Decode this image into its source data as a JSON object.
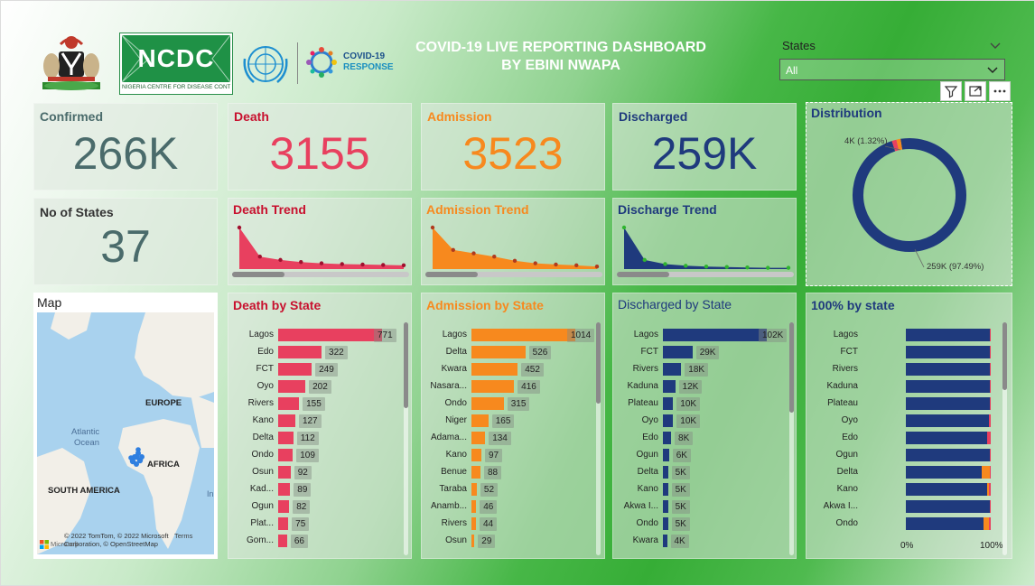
{
  "header": {
    "line1": "COVID-19 LIVE REPORTING DASHBOARD",
    "line2": "BY EBINI NWAPA"
  },
  "logos": {
    "ncdc_name": "NCDC",
    "ncdc_caption": "NIGERIA CENTRE FOR DISEASE CONTROL",
    "covid_line1": "COVID-19",
    "covid_line2": "RESPONSE"
  },
  "slicer": {
    "label": "States",
    "value": "All"
  },
  "kpis": {
    "confirmed": {
      "label": "Confirmed",
      "value": "266K"
    },
    "death": {
      "label": "Death",
      "value": "3155"
    },
    "admission": {
      "label": "Admission",
      "value": "3523"
    },
    "discharged": {
      "label": "Discharged",
      "value": "259K"
    },
    "states": {
      "label": "No of States",
      "value": "37"
    }
  },
  "trends": {
    "death": {
      "title": "Death Trend",
      "values": [
        100,
        30,
        22,
        17,
        14,
        12,
        11,
        10,
        9
      ]
    },
    "admission": {
      "title": "Admission Trend",
      "values": [
        100,
        46,
        38,
        30,
        20,
        14,
        11,
        9,
        6
      ]
    },
    "discharge": {
      "title": "Discharge Trend",
      "values": [
        100,
        22,
        12,
        8,
        6,
        5,
        4,
        3,
        3
      ]
    }
  },
  "distribution": {
    "title": "Distribution",
    "label_small": "4K (1.32%)",
    "label_big": "259K (97.49%)",
    "slices": [
      97.49,
      1.32,
      1.19
    ]
  },
  "map": {
    "title": "Map",
    "europe": "EUROPE",
    "africa": "AFRICA",
    "south_america": "SOUTH AMERICA",
    "atlantic": "Atlantic",
    "ocean": "Ocean",
    "attribution": "© 2022 TomTom, © 2022 Microsoft Corporation, © OpenStreetMap",
    "terms": "Terms",
    "brand": "Microsoft",
    "edge_text": "In"
  },
  "death_by_state": {
    "title": "Death by State",
    "max": 771,
    "rows": [
      {
        "label": "Lagos",
        "value": 771
      },
      {
        "label": "Edo",
        "value": 322
      },
      {
        "label": "FCT",
        "value": 249
      },
      {
        "label": "Oyo",
        "value": 202
      },
      {
        "label": "Rivers",
        "value": 155
      },
      {
        "label": "Kano",
        "value": 127
      },
      {
        "label": "Delta",
        "value": 112
      },
      {
        "label": "Ondo",
        "value": 109
      },
      {
        "label": "Osun",
        "value": 92
      },
      {
        "label": "Kad...",
        "value": 89
      },
      {
        "label": "Ogun",
        "value": 82
      },
      {
        "label": "Plat...",
        "value": 75
      },
      {
        "label": "Gom...",
        "value": 66
      }
    ]
  },
  "admission_by_state": {
    "title": "Admission by State",
    "max": 1014,
    "rows": [
      {
        "label": "Lagos",
        "value": 1014
      },
      {
        "label": "Delta",
        "value": 526
      },
      {
        "label": "Kwara",
        "value": 452
      },
      {
        "label": "Nasara...",
        "value": 416
      },
      {
        "label": "Ondo",
        "value": 315
      },
      {
        "label": "Niger",
        "value": 165
      },
      {
        "label": "Adama...",
        "value": 134
      },
      {
        "label": "Kano",
        "value": 97
      },
      {
        "label": "Benue",
        "value": 88
      },
      {
        "label": "Taraba",
        "value": 52
      },
      {
        "label": "Anamb...",
        "value": 46
      },
      {
        "label": "Rivers",
        "value": 44
      },
      {
        "label": "Osun",
        "value": 29
      }
    ]
  },
  "discharged_by_state": {
    "title": "Discharged by State",
    "max": 102,
    "rows": [
      {
        "label": "Lagos",
        "value": 102,
        "text": "102K"
      },
      {
        "label": "FCT",
        "value": 29,
        "text": "29K"
      },
      {
        "label": "Rivers",
        "value": 18,
        "text": "18K"
      },
      {
        "label": "Kaduna",
        "value": 12,
        "text": "12K"
      },
      {
        "label": "Plateau",
        "value": 10,
        "text": "10K"
      },
      {
        "label": "Oyo",
        "value": 10,
        "text": "10K"
      },
      {
        "label": "Edo",
        "value": 8,
        "text": "8K"
      },
      {
        "label": "Ogun",
        "value": 6,
        "text": "6K"
      },
      {
        "label": "Delta",
        "value": 5,
        "text": "5K"
      },
      {
        "label": "Kano",
        "value": 5,
        "text": "5K"
      },
      {
        "label": "Akwa I...",
        "value": 5,
        "text": "5K"
      },
      {
        "label": "Ondo",
        "value": 5,
        "text": "5K"
      },
      {
        "label": "Kwara",
        "value": 4,
        "text": "4K"
      }
    ]
  },
  "pct_by_state": {
    "title": "100% by state",
    "axis_min": "0%",
    "axis_max": "100%",
    "rows": [
      {
        "label": "Lagos",
        "discharged": 98.5,
        "death": 0.7,
        "admission": 0.8
      },
      {
        "label": "FCT",
        "discharged": 98.9,
        "death": 0.8,
        "admission": 0.3
      },
      {
        "label": "Rivers",
        "discharged": 98.6,
        "death": 0.9,
        "admission": 0.5
      },
      {
        "label": "Kaduna",
        "discharged": 99.1,
        "death": 0.7,
        "admission": 0.2
      },
      {
        "label": "Plateau",
        "discharged": 99.1,
        "death": 0.7,
        "admission": 0.2
      },
      {
        "label": "Oyo",
        "discharged": 97.8,
        "death": 2.0,
        "admission": 0.2
      },
      {
        "label": "Edo",
        "discharged": 95.8,
        "death": 3.8,
        "admission": 0.4
      },
      {
        "label": "Ogun",
        "discharged": 98.5,
        "death": 1.3,
        "admission": 0.2
      },
      {
        "label": "Delta",
        "discharged": 89.5,
        "death": 1.5,
        "admission": 9.0
      },
      {
        "label": "Kano",
        "discharged": 95.7,
        "death": 2.4,
        "admission": 1.9
      },
      {
        "label": "Akwa I...",
        "discharged": 99.0,
        "death": 0.6,
        "admission": 0.4
      },
      {
        "label": "Ondo",
        "discharged": 92.0,
        "death": 2.0,
        "admission": 6.0
      }
    ]
  },
  "colors": {
    "confirmed": "#4a6b6b",
    "death": "#e8405f",
    "admission": "#f7891e",
    "discharged": "#1f3a7d",
    "trend_line": "#2fb42f"
  }
}
